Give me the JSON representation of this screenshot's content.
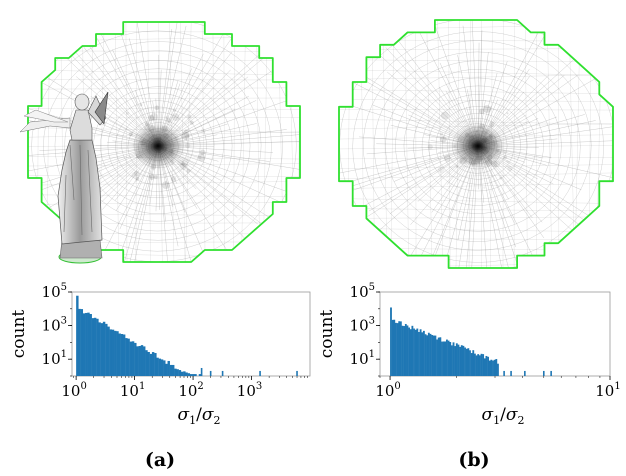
{
  "figure": {
    "panels": [
      {
        "label": "(a)",
        "has_statue": true
      },
      {
        "label": "(b)",
        "has_statue": false
      }
    ],
    "colors": {
      "boundary": "#2fe02f",
      "mesh_line": "#7a7a7a",
      "bar": "#1f77b4",
      "axis": "#000000"
    }
  },
  "chart_data": [
    {
      "type": "bar",
      "panel": "(a)",
      "title": "",
      "xlabel": "σ1/σ2",
      "ylabel": "count",
      "xscale": "log",
      "yscale": "log",
      "xlim": [
        0.85,
        10000
      ],
      "ylim": [
        1,
        100000
      ],
      "xticks": [
        {
          "value": 1,
          "base": "10",
          "exp": "0"
        },
        {
          "value": 10,
          "base": "10",
          "exp": "1"
        },
        {
          "value": 100,
          "base": "10",
          "exp": "2"
        },
        {
          "value": 1000,
          "base": "10",
          "exp": "3"
        }
      ],
      "yticks": [
        {
          "value": 100000,
          "base": "10",
          "exp": "5"
        },
        {
          "value": 1000,
          "base": "10",
          "exp": "3"
        },
        {
          "value": 10,
          "base": "10",
          "exp": "1"
        }
      ],
      "bins": {
        "x_start": 1,
        "x_end": 6500,
        "count": 100,
        "spike": 60000,
        "decay": 2.1,
        "floor": 0.6,
        "cutoff": 150
      },
      "sparse_bars": [
        {
          "x": 140,
          "y": 3
        },
        {
          "x": 200,
          "y": 2
        },
        {
          "x": 320,
          "y": 2
        },
        {
          "x": 1400,
          "y": 2
        },
        {
          "x": 6000,
          "y": 2
        }
      ]
    },
    {
      "type": "bar",
      "panel": "(b)",
      "title": "",
      "xlabel": "σ1/σ2",
      "ylabel": "count",
      "xscale": "log",
      "yscale": "log",
      "xlim": [
        0.9,
        10
      ],
      "ylim": [
        1,
        100000
      ],
      "xticks": [
        {
          "value": 1,
          "base": "10",
          "exp": "0"
        },
        {
          "value": 10,
          "base": "10",
          "exp": "1"
        }
      ],
      "yticks": [
        {
          "value": 100000,
          "base": "10",
          "exp": "5"
        },
        {
          "value": 1000,
          "base": "10",
          "exp": "3"
        },
        {
          "value": 10,
          "base": "10",
          "exp": "1"
        }
      ],
      "bins": {
        "x_start": 1,
        "x_end": 5.6,
        "count": 100,
        "spike": 12000,
        "decay": 5.2,
        "floor": 0.6,
        "cutoff": 3.1
      },
      "sparse_bars": [
        {
          "x": 3.3,
          "y": 2
        },
        {
          "x": 3.55,
          "y": 2
        },
        {
          "x": 4.1,
          "y": 2
        },
        {
          "x": 5.0,
          "y": 2
        },
        {
          "x": 5.4,
          "y": 2
        }
      ]
    }
  ]
}
